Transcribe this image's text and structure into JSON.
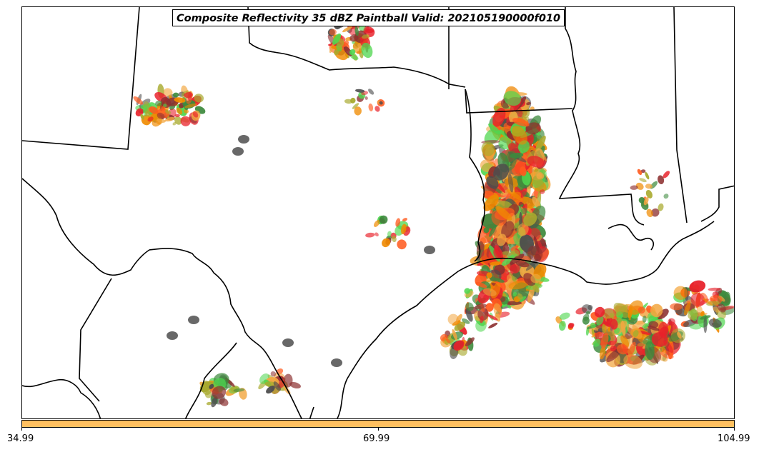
{
  "title": "Composite Reflectivity 35 dBZ Paintball Valid: 202105190000f010",
  "colorbar": {
    "color": "#ffc060",
    "tick_labels": [
      "34.99",
      "69.99",
      "104.99"
    ]
  },
  "member_colors": [
    "#e8212a",
    "#f08a00",
    "#f2a640",
    "#4fd64f",
    "#3d8a3d",
    "#a8aa2e",
    "#8c2f2f",
    "#4d4d4d",
    "#ff5a1e"
  ]
}
